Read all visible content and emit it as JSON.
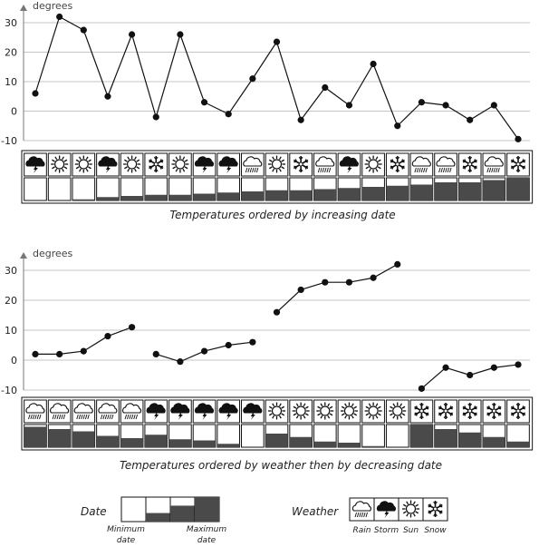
{
  "chart_data": [
    {
      "type": "line",
      "title": "Temperatures ordered by increasing date",
      "ylabel": "degrees",
      "ylim": [
        -10,
        30
      ],
      "yticks": [
        30,
        20,
        10,
        0,
        -10
      ],
      "grid": true,
      "series": [
        {
          "values": [
            6,
            32,
            27.5,
            5,
            26,
            -2,
            26,
            3,
            -1,
            11,
            23.5,
            -3,
            8,
            2,
            16,
            -5,
            3,
            2,
            -3,
            2,
            -9.5
          ],
          "weather": [
            "storm",
            "sun",
            "sun",
            "storm",
            "sun",
            "snow",
            "sun",
            "storm",
            "storm",
            "rain",
            "sun",
            "snow",
            "rain",
            "storm",
            "sun",
            "snow",
            "rain",
            "rain",
            "snow",
            "rain",
            "snow"
          ],
          "date_fill": [
            0,
            0,
            0.05,
            0.15,
            0.2,
            0.25,
            0.25,
            0.3,
            0.35,
            0.4,
            0.45,
            0.45,
            0.5,
            0.55,
            0.6,
            0.65,
            0.7,
            0.8,
            0.8,
            0.9,
            1
          ]
        }
      ]
    },
    {
      "type": "line",
      "title": "Temperatures ordered by weather then by decreasing date",
      "ylabel": "degrees",
      "ylim": [
        -10,
        30
      ],
      "yticks": [
        30,
        20,
        10,
        0,
        -10
      ],
      "grid": true,
      "series": [
        {
          "segments": [
            [
              2,
              2,
              3,
              8,
              11
            ],
            [
              2,
              -0.5,
              3,
              5,
              6
            ],
            [
              16,
              23.5,
              26,
              26,
              27.5,
              32
            ],
            [
              -9.5,
              -2.5,
              -5,
              -2.5,
              -1.5
            ]
          ],
          "weather": [
            "rain",
            "rain",
            "rain",
            "rain",
            "rain",
            "storm",
            "storm",
            "storm",
            "storm",
            "storm",
            "sun",
            "sun",
            "sun",
            "sun",
            "sun",
            "sun",
            "snow",
            "snow",
            "snow",
            "snow",
            "snow"
          ],
          "date_fill": [
            0.9,
            0.8,
            0.7,
            0.5,
            0.4,
            0.55,
            0.35,
            0.3,
            0.15,
            0,
            0.6,
            0.45,
            0.25,
            0.2,
            0.05,
            0,
            1,
            0.8,
            0.65,
            0.45,
            0.25
          ]
        }
      ]
    }
  ],
  "legend": {
    "date": {
      "label": "Date",
      "min_label": "Minimum date",
      "max_label": "Maximum date",
      "swatches": [
        0,
        0.35,
        0.65,
        1
      ]
    },
    "weather": {
      "label": "Weather",
      "items": [
        {
          "icon": "rain",
          "label": "Rain"
        },
        {
          "icon": "storm",
          "label": "Storm"
        },
        {
          "icon": "sun",
          "label": "Sun"
        },
        {
          "icon": "snow",
          "label": "Snow"
        }
      ]
    }
  }
}
